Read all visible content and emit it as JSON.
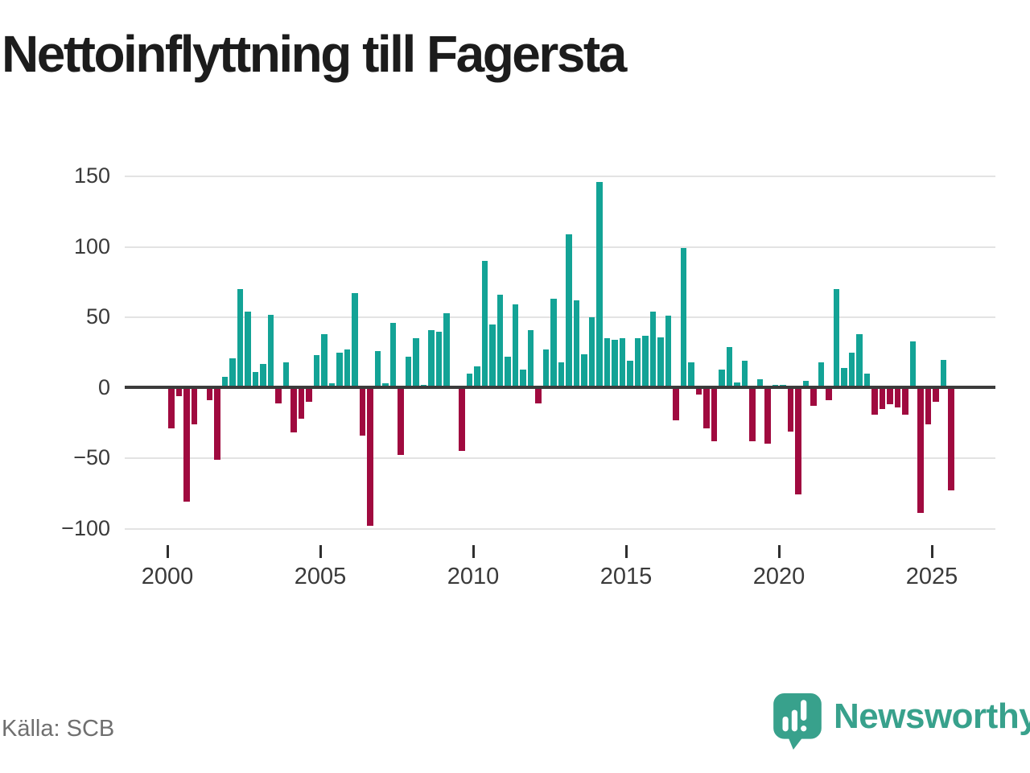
{
  "title": "Nettoinflyttning till Fagersta",
  "footer": {
    "source": "Källa: SCB",
    "logo_text": "Newsworthy"
  },
  "colors": {
    "positive": "#13a396",
    "negative": "#a00a3f",
    "grid": "#e3e3e3",
    "zero_line": "#3b3b3b",
    "axis_text": "#3a3a3a",
    "muted_text": "#6f6f6f",
    "logo": "#38a18c",
    "title_text": "#1c1c1c"
  },
  "chart_data": {
    "type": "bar",
    "title": "Nettoinflyttning till Fagersta",
    "frequency": "quarterly",
    "x_start_label": "2000 Q1",
    "x_end_label": "2025 Q3",
    "x_tick_labels": [
      "2000",
      "2005",
      "2010",
      "2015",
      "2020",
      "2025"
    ],
    "x_tick_years": [
      2000,
      2005,
      2010,
      2015,
      2020,
      2025
    ],
    "y_ticks": [
      150,
      100,
      50,
      0,
      -50,
      -100
    ],
    "y_tick_labels": [
      "150",
      "100",
      "50",
      "0",
      "−50",
      "−100"
    ],
    "ylim": [
      -100,
      150
    ],
    "grid": "horizontal",
    "legend": "none",
    "positive_color": "#13a396",
    "negative_color": "#a00a3f",
    "values": [
      -28,
      -5,
      -80,
      -25,
      0,
      -8,
      -50,
      8,
      21,
      70,
      54,
      11,
      17,
      52,
      -10,
      18,
      -31,
      -21,
      -9,
      23,
      38,
      3,
      25,
      27,
      67,
      -33,
      -97,
      26,
      3,
      46,
      -47,
      22,
      35,
      2,
      41,
      40,
      53,
      0,
      -44,
      10,
      15,
      90,
      45,
      66,
      22,
      59,
      13,
      41,
      -10,
      27,
      63,
      18,
      109,
      62,
      24,
      50,
      146,
      35,
      34,
      35,
      19,
      35,
      37,
      54,
      36,
      51,
      -22,
      99,
      18,
      -4,
      -28,
      -37,
      13,
      29,
      4,
      19,
      -37,
      6,
      -39,
      2,
      2,
      -30,
      -75,
      5,
      -12,
      18,
      -8,
      70,
      14,
      25,
      38,
      10,
      -18,
      -14,
      -11,
      -13,
      -18,
      33,
      -88,
      -25,
      -9,
      20,
      -72
    ]
  }
}
